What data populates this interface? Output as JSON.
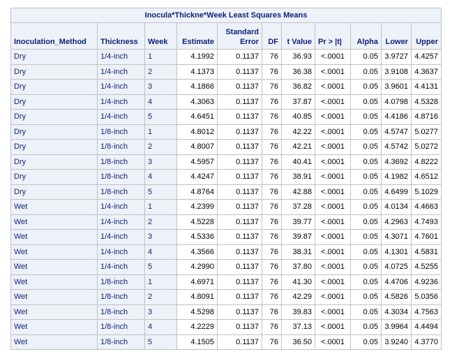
{
  "title": "Inocula*Thickne*Week Least Squares Means",
  "columns": {
    "method": "Inoculation_Method",
    "thickness": "Thickness",
    "week": "Week",
    "estimate": "Estimate",
    "stderr_line1": "Standard",
    "stderr_line2": "Error",
    "df": "DF",
    "tvalue": "t Value",
    "pr": "Pr > |t|",
    "alpha": "Alpha",
    "lower": "Lower",
    "upper": "Upper"
  },
  "rows": [
    {
      "method": "Dry",
      "thickness": "1/4-inch",
      "week": "1",
      "estimate": "4.1992",
      "stderr": "0.1137",
      "df": "76",
      "tvalue": "36.93",
      "pr": "<.0001",
      "alpha": "0.05",
      "lower": "3.9727",
      "upper": "4.4257"
    },
    {
      "method": "Dry",
      "thickness": "1/4-inch",
      "week": "2",
      "estimate": "4.1373",
      "stderr": "0.1137",
      "df": "76",
      "tvalue": "36.38",
      "pr": "<.0001",
      "alpha": "0.05",
      "lower": "3.9108",
      "upper": "4.3637"
    },
    {
      "method": "Dry",
      "thickness": "1/4-inch",
      "week": "3",
      "estimate": "4.1866",
      "stderr": "0.1137",
      "df": "76",
      "tvalue": "36.82",
      "pr": "<.0001",
      "alpha": "0.05",
      "lower": "3.9601",
      "upper": "4.4131"
    },
    {
      "method": "Dry",
      "thickness": "1/4-inch",
      "week": "4",
      "estimate": "4.3063",
      "stderr": "0.1137",
      "df": "76",
      "tvalue": "37.87",
      "pr": "<.0001",
      "alpha": "0.05",
      "lower": "4.0798",
      "upper": "4.5328"
    },
    {
      "method": "Dry",
      "thickness": "1/4-inch",
      "week": "5",
      "estimate": "4.6451",
      "stderr": "0.1137",
      "df": "76",
      "tvalue": "40.85",
      "pr": "<.0001",
      "alpha": "0.05",
      "lower": "4.4186",
      "upper": "4.8716"
    },
    {
      "method": "Dry",
      "thickness": "1/8-inch",
      "week": "1",
      "estimate": "4.8012",
      "stderr": "0.1137",
      "df": "76",
      "tvalue": "42.22",
      "pr": "<.0001",
      "alpha": "0.05",
      "lower": "4.5747",
      "upper": "5.0277"
    },
    {
      "method": "Dry",
      "thickness": "1/8-inch",
      "week": "2",
      "estimate": "4.8007",
      "stderr": "0.1137",
      "df": "76",
      "tvalue": "42.21",
      "pr": "<.0001",
      "alpha": "0.05",
      "lower": "4.5742",
      "upper": "5.0272"
    },
    {
      "method": "Dry",
      "thickness": "1/8-inch",
      "week": "3",
      "estimate": "4.5957",
      "stderr": "0.1137",
      "df": "76",
      "tvalue": "40.41",
      "pr": "<.0001",
      "alpha": "0.05",
      "lower": "4.3692",
      "upper": "4.8222"
    },
    {
      "method": "Dry",
      "thickness": "1/8-inch",
      "week": "4",
      "estimate": "4.4247",
      "stderr": "0.1137",
      "df": "76",
      "tvalue": "38.91",
      "pr": "<.0001",
      "alpha": "0.05",
      "lower": "4.1982",
      "upper": "4.6512"
    },
    {
      "method": "Dry",
      "thickness": "1/8-inch",
      "week": "5",
      "estimate": "4.8764",
      "stderr": "0.1137",
      "df": "76",
      "tvalue": "42.88",
      "pr": "<.0001",
      "alpha": "0.05",
      "lower": "4.6499",
      "upper": "5.1029"
    },
    {
      "method": "Wet",
      "thickness": "1/4-inch",
      "week": "1",
      "estimate": "4.2399",
      "stderr": "0.1137",
      "df": "76",
      "tvalue": "37.28",
      "pr": "<.0001",
      "alpha": "0.05",
      "lower": "4.0134",
      "upper": "4.4663"
    },
    {
      "method": "Wet",
      "thickness": "1/4-inch",
      "week": "2",
      "estimate": "4.5228",
      "stderr": "0.1137",
      "df": "76",
      "tvalue": "39.77",
      "pr": "<.0001",
      "alpha": "0.05",
      "lower": "4.2963",
      "upper": "4.7493"
    },
    {
      "method": "Wet",
      "thickness": "1/4-inch",
      "week": "3",
      "estimate": "4.5336",
      "stderr": "0.1137",
      "df": "76",
      "tvalue": "39.87",
      "pr": "<.0001",
      "alpha": "0.05",
      "lower": "4.3071",
      "upper": "4.7601"
    },
    {
      "method": "Wet",
      "thickness": "1/4-inch",
      "week": "4",
      "estimate": "4.3566",
      "stderr": "0.1137",
      "df": "76",
      "tvalue": "38.31",
      "pr": "<.0001",
      "alpha": "0.05",
      "lower": "4.1301",
      "upper": "4.5831"
    },
    {
      "method": "Wet",
      "thickness": "1/4-inch",
      "week": "5",
      "estimate": "4.2990",
      "stderr": "0.1137",
      "df": "76",
      "tvalue": "37.80",
      "pr": "<.0001",
      "alpha": "0.05",
      "lower": "4.0725",
      "upper": "4.5255"
    },
    {
      "method": "Wet",
      "thickness": "1/8-inch",
      "week": "1",
      "estimate": "4.6971",
      "stderr": "0.1137",
      "df": "76",
      "tvalue": "41.30",
      "pr": "<.0001",
      "alpha": "0.05",
      "lower": "4.4706",
      "upper": "4.9236"
    },
    {
      "method": "Wet",
      "thickness": "1/8-inch",
      "week": "2",
      "estimate": "4.8091",
      "stderr": "0.1137",
      "df": "76",
      "tvalue": "42.29",
      "pr": "<.0001",
      "alpha": "0.05",
      "lower": "4.5826",
      "upper": "5.0356"
    },
    {
      "method": "Wet",
      "thickness": "1/8-inch",
      "week": "3",
      "estimate": "4.5298",
      "stderr": "0.1137",
      "df": "76",
      "tvalue": "39.83",
      "pr": "<.0001",
      "alpha": "0.05",
      "lower": "4.3034",
      "upper": "4.7563"
    },
    {
      "method": "Wet",
      "thickness": "1/8-inch",
      "week": "4",
      "estimate": "4.2229",
      "stderr": "0.1137",
      "df": "76",
      "tvalue": "37.13",
      "pr": "<.0001",
      "alpha": "0.05",
      "lower": "3.9964",
      "upper": "4.4494"
    },
    {
      "method": "Wet",
      "thickness": "1/8-inch",
      "week": "5",
      "estimate": "4.1505",
      "stderr": "0.1137",
      "df": "76",
      "tvalue": "36.50",
      "pr": "<.0001",
      "alpha": "0.05",
      "lower": "3.9240",
      "upper": "4.3770"
    }
  ]
}
